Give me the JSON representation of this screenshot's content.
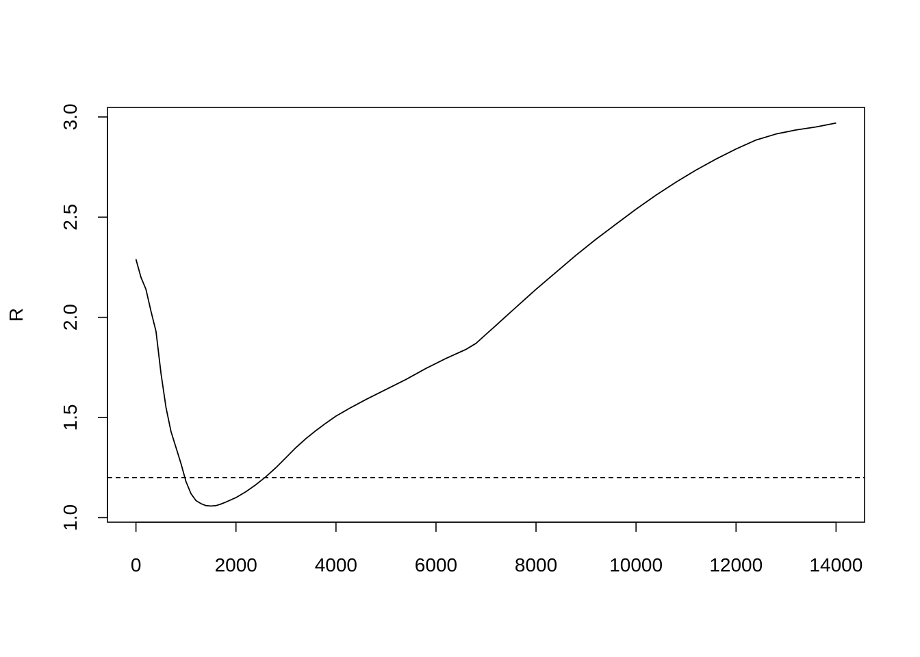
{
  "chart_data": {
    "type": "line",
    "title": "",
    "xlabel": "",
    "ylabel": "R",
    "xlim": [
      -570,
      14570
    ],
    "ylim": [
      0.9775,
      3.0475
    ],
    "x_ticks": [
      0,
      2000,
      4000,
      6000,
      8000,
      10000,
      12000,
      14000
    ],
    "x_tick_labels": [
      "0",
      "2000",
      "4000",
      "6000",
      "8000",
      "10000",
      "12000",
      "14000"
    ],
    "y_ticks": [
      1.0,
      1.5,
      2.0,
      2.5,
      3.0
    ],
    "y_tick_labels": [
      "1.0",
      "1.5",
      "2.0",
      "2.5",
      "3.0"
    ],
    "reference_line": {
      "y": 1.2,
      "style": "dashed"
    },
    "series": [
      {
        "name": "R",
        "x": [
          0,
          100,
          200,
          300,
          400,
          500,
          600,
          700,
          800,
          900,
          1000,
          1100,
          1200,
          1300,
          1400,
          1500,
          1600,
          1700,
          1800,
          2000,
          2200,
          2400,
          2600,
          2800,
          3000,
          3200,
          3400,
          3600,
          3800,
          4000,
          4300,
          4600,
          5000,
          5400,
          5800,
          6200,
          6600,
          6800,
          7000,
          7200,
          7400,
          7600,
          8000,
          8400,
          8800,
          9200,
          9600,
          10000,
          10400,
          10800,
          11200,
          11600,
          12000,
          12400,
          12800,
          13200,
          13600,
          14000
        ],
        "y": [
          2.29,
          2.2,
          2.14,
          2.03,
          1.93,
          1.72,
          1.55,
          1.43,
          1.35,
          1.27,
          1.18,
          1.12,
          1.085,
          1.07,
          1.06,
          1.058,
          1.06,
          1.068,
          1.078,
          1.1,
          1.13,
          1.165,
          1.205,
          1.25,
          1.3,
          1.35,
          1.395,
          1.435,
          1.472,
          1.507,
          1.55,
          1.59,
          1.64,
          1.69,
          1.745,
          1.795,
          1.84,
          1.87,
          1.915,
          1.96,
          2.005,
          2.05,
          2.14,
          2.225,
          2.31,
          2.39,
          2.465,
          2.54,
          2.61,
          2.675,
          2.735,
          2.79,
          2.84,
          2.885,
          2.915,
          2.935,
          2.95,
          2.97
        ]
      }
    ]
  }
}
